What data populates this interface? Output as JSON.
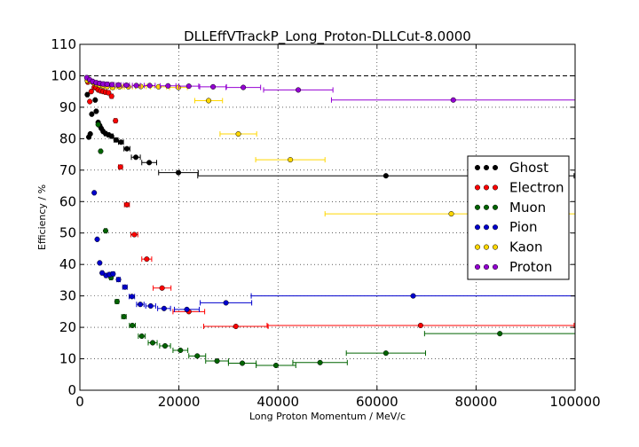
{
  "chart_data": {
    "type": "scatter",
    "title": "DLLEffVTrackP_Long_Proton-DLLCut-8.0000",
    "xlabel": "Long Proton Momentum / MeV/c",
    "ylabel": "Efficiency / %",
    "xlim": [
      0,
      100000
    ],
    "ylim": [
      0,
      110
    ],
    "xticks": [
      0,
      20000,
      40000,
      60000,
      80000,
      100000
    ],
    "yticks": [
      0,
      10,
      20,
      30,
      40,
      50,
      60,
      70,
      80,
      90,
      100,
      110
    ],
    "x_tick_labels": [
      "0",
      "20000",
      "40000",
      "60000",
      "80000",
      "100000"
    ],
    "y_tick_labels": [
      "0",
      "10",
      "20",
      "30",
      "40",
      "50",
      "60",
      "70",
      "80",
      "90",
      "100",
      "110"
    ],
    "grid": true,
    "reference_line": 100,
    "legend_position": "right",
    "series": [
      {
        "name": "Ghost",
        "color": "#000000",
        "points": [
          {
            "x": 1500,
            "y": 94,
            "xerr": 200
          },
          {
            "x": 1800,
            "y": 80.5,
            "xerr": 150
          },
          {
            "x": 2100,
            "y": 81.5,
            "xerr": 150
          },
          {
            "x": 2400,
            "y": 87.8,
            "xerr": 150
          },
          {
            "x": 3100,
            "y": 92.3,
            "xerr": 150
          },
          {
            "x": 3300,
            "y": 88.7,
            "xerr": 150
          },
          {
            "x": 3700,
            "y": 85.2,
            "xerr": 150
          },
          {
            "x": 4000,
            "y": 84.2,
            "xerr": 150
          },
          {
            "x": 4300,
            "y": 83.3,
            "xerr": 150
          },
          {
            "x": 4700,
            "y": 82.3,
            "xerr": 200
          },
          {
            "x": 5200,
            "y": 81.6,
            "xerr": 250
          },
          {
            "x": 5800,
            "y": 81.2,
            "xerr": 250
          },
          {
            "x": 6400,
            "y": 80.8,
            "xerr": 300
          },
          {
            "x": 7300,
            "y": 79.6,
            "xerr": 400
          },
          {
            "x": 8300,
            "y": 78.9,
            "xerr": 500
          },
          {
            "x": 9500,
            "y": 76.8,
            "xerr": 600
          },
          {
            "x": 11300,
            "y": 74.1,
            "xerr": 900
          },
          {
            "x": 14000,
            "y": 72.4,
            "xerr": 1500
          },
          {
            "x": 19900,
            "y": 69.2,
            "xerr": 4000
          },
          {
            "x": 61800,
            "y": 68.2,
            "xerr": 38000
          }
        ]
      },
      {
        "name": "Electron",
        "color": "#ff0000",
        "points": [
          {
            "x": 1600,
            "y": 98.0,
            "xerr": 200
          },
          {
            "x": 2000,
            "y": 91.8,
            "xerr": 150
          },
          {
            "x": 2300,
            "y": 95.0,
            "xerr": 150
          },
          {
            "x": 2900,
            "y": 96.3,
            "xerr": 150
          },
          {
            "x": 3300,
            "y": 96.2,
            "xerr": 150
          },
          {
            "x": 3700,
            "y": 95.5,
            "xerr": 150
          },
          {
            "x": 4200,
            "y": 95.2,
            "xerr": 200
          },
          {
            "x": 4700,
            "y": 95.0,
            "xerr": 200
          },
          {
            "x": 5200,
            "y": 94.8,
            "xerr": 250
          },
          {
            "x": 5800,
            "y": 94.6,
            "xerr": 250
          },
          {
            "x": 6400,
            "y": 93.5,
            "xerr": 300
          },
          {
            "x": 7200,
            "y": 85.7,
            "xerr": 300
          },
          {
            "x": 8200,
            "y": 71.0,
            "xerr": 400
          },
          {
            "x": 9500,
            "y": 59.0,
            "xerr": 500
          },
          {
            "x": 11000,
            "y": 49.5,
            "xerr": 700
          },
          {
            "x": 13500,
            "y": 41.7,
            "xerr": 1000
          },
          {
            "x": 16600,
            "y": 32.5,
            "xerr": 1800
          },
          {
            "x": 22000,
            "y": 25.0,
            "xerr": 3200
          },
          {
            "x": 31500,
            "y": 20.3,
            "xerr": 6500
          },
          {
            "x": 68800,
            "y": 20.6,
            "xerr": 31000
          }
        ]
      },
      {
        "name": "Muon",
        "color": "#006400",
        "points": [
          {
            "x": 3700,
            "y": 84.5,
            "xerr": 150
          },
          {
            "x": 4200,
            "y": 76.0,
            "xerr": 200
          },
          {
            "x": 5200,
            "y": 50.7,
            "xerr": 250
          },
          {
            "x": 6300,
            "y": 35.8,
            "xerr": 300
          },
          {
            "x": 7500,
            "y": 28.2,
            "xerr": 350
          },
          {
            "x": 8900,
            "y": 23.4,
            "xerr": 450
          },
          {
            "x": 10600,
            "y": 20.6,
            "xerr": 600
          },
          {
            "x": 12500,
            "y": 17.2,
            "xerr": 700
          },
          {
            "x": 14700,
            "y": 15.1,
            "xerr": 900
          },
          {
            "x": 17200,
            "y": 14.1,
            "xerr": 1100
          },
          {
            "x": 20300,
            "y": 12.7,
            "xerr": 1500
          },
          {
            "x": 23700,
            "y": 10.9,
            "xerr": 1700
          },
          {
            "x": 27700,
            "y": 9.3,
            "xerr": 2300
          },
          {
            "x": 32800,
            "y": 8.6,
            "xerr": 2800
          },
          {
            "x": 39600,
            "y": 7.9,
            "xerr": 4000
          },
          {
            "x": 48500,
            "y": 8.8,
            "xerr": 5500
          },
          {
            "x": 61800,
            "y": 11.8,
            "xerr": 8000
          },
          {
            "x": 84800,
            "y": 18.0,
            "xerr": 15200
          }
        ]
      },
      {
        "name": "Pion",
        "color": "#0000cd",
        "points": [
          {
            "x": 2900,
            "y": 62.8,
            "xerr": 150
          },
          {
            "x": 3500,
            "y": 48.0,
            "xerr": 150
          },
          {
            "x": 4000,
            "y": 40.5,
            "xerr": 150
          },
          {
            "x": 4500,
            "y": 37.3,
            "xerr": 200
          },
          {
            "x": 5300,
            "y": 36.5,
            "xerr": 250
          },
          {
            "x": 6000,
            "y": 36.8,
            "xerr": 300
          },
          {
            "x": 6700,
            "y": 37.0,
            "xerr": 300
          },
          {
            "x": 7800,
            "y": 35.2,
            "xerr": 350
          },
          {
            "x": 9100,
            "y": 32.8,
            "xerr": 450
          },
          {
            "x": 10500,
            "y": 29.8,
            "xerr": 550
          },
          {
            "x": 12200,
            "y": 27.3,
            "xerr": 750
          },
          {
            "x": 14300,
            "y": 26.8,
            "xerr": 1000
          },
          {
            "x": 17000,
            "y": 26.0,
            "xerr": 1300
          },
          {
            "x": 21600,
            "y": 25.7,
            "xerr": 2500
          },
          {
            "x": 29500,
            "y": 27.8,
            "xerr": 5200
          },
          {
            "x": 67300,
            "y": 30.0,
            "xerr": 32700
          }
        ]
      },
      {
        "name": "Kaon",
        "color": "#ffd700",
        "points": [
          {
            "x": 1500,
            "y": 98.5,
            "xerr": 200
          },
          {
            "x": 2100,
            "y": 98.3,
            "xerr": 150
          },
          {
            "x": 2700,
            "y": 97.8,
            "xerr": 150
          },
          {
            "x": 3400,
            "y": 97.3,
            "xerr": 200
          },
          {
            "x": 4000,
            "y": 97.0,
            "xerr": 200
          },
          {
            "x": 4700,
            "y": 96.8,
            "xerr": 250
          },
          {
            "x": 5500,
            "y": 96.6,
            "xerr": 300
          },
          {
            "x": 6600,
            "y": 96.3,
            "xerr": 400
          },
          {
            "x": 8000,
            "y": 96.5,
            "xerr": 600
          },
          {
            "x": 9800,
            "y": 96.5,
            "xerr": 800
          },
          {
            "x": 12300,
            "y": 96.6,
            "xerr": 1100
          },
          {
            "x": 15900,
            "y": 96.5,
            "xerr": 1600
          },
          {
            "x": 19900,
            "y": 96.3,
            "xerr": 1800
          },
          {
            "x": 26000,
            "y": 92.1,
            "xerr": 2800
          },
          {
            "x": 32000,
            "y": 81.5,
            "xerr": 3700
          },
          {
            "x": 42500,
            "y": 73.3,
            "xerr": 7000
          },
          {
            "x": 75000,
            "y": 56.1,
            "xerr": 25500
          }
        ]
      },
      {
        "name": "Proton",
        "color": "#9400d3",
        "points": [
          {
            "x": 1400,
            "y": 99.4,
            "xerr": 200
          },
          {
            "x": 2000,
            "y": 98.7,
            "xerr": 150
          },
          {
            "x": 2600,
            "y": 98.2,
            "xerr": 150
          },
          {
            "x": 3300,
            "y": 97.8,
            "xerr": 200
          },
          {
            "x": 4000,
            "y": 97.6,
            "xerr": 200
          },
          {
            "x": 4700,
            "y": 97.4,
            "xerr": 250
          },
          {
            "x": 5500,
            "y": 97.3,
            "xerr": 300
          },
          {
            "x": 6500,
            "y": 97.2,
            "xerr": 400
          },
          {
            "x": 7800,
            "y": 97.1,
            "xerr": 500
          },
          {
            "x": 9400,
            "y": 97.0,
            "xerr": 600
          },
          {
            "x": 11400,
            "y": 96.9,
            "xerr": 800
          },
          {
            "x": 14100,
            "y": 96.9,
            "xerr": 1100
          },
          {
            "x": 17800,
            "y": 96.8,
            "xerr": 1600
          },
          {
            "x": 22000,
            "y": 96.7,
            "xerr": 2000
          },
          {
            "x": 26900,
            "y": 96.5,
            "xerr": 2700
          },
          {
            "x": 33000,
            "y": 96.3,
            "xerr": 3500
          },
          {
            "x": 44100,
            "y": 95.5,
            "xerr": 7000
          },
          {
            "x": 75400,
            "y": 92.3,
            "xerr": 24600
          }
        ]
      }
    ]
  }
}
